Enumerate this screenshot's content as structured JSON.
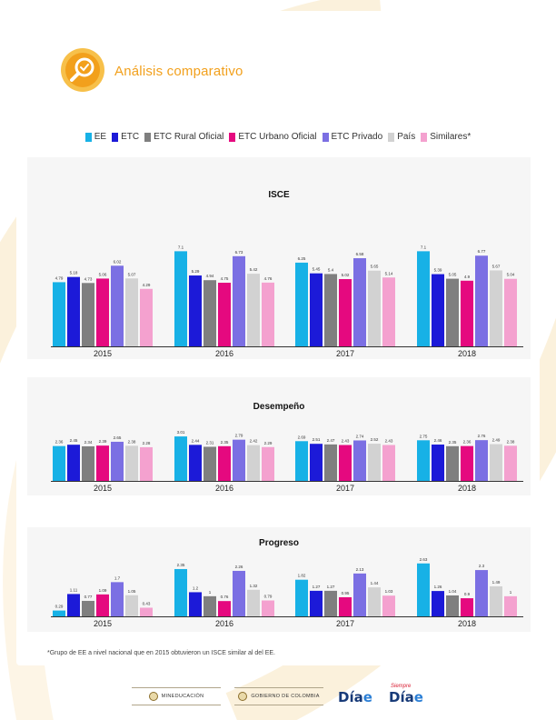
{
  "header": {
    "title": "Análisis comparativo",
    "icon": "magnifier-check-icon",
    "accent_color": "#f2a01c"
  },
  "legend": [
    {
      "label": "EE",
      "color": "#17b1e6"
    },
    {
      "label": "ETC",
      "color": "#1c1ad8"
    },
    {
      "label": "ETC Rural Oficial",
      "color": "#7f7f7f"
    },
    {
      "label": "ETC Urbano Oficial",
      "color": "#e5097f"
    },
    {
      "label": "ETC Privado",
      "color": "#7b6fe3"
    },
    {
      "label": "País",
      "color": "#d2d2d2"
    },
    {
      "label": "Similares*",
      "color": "#f4a1cf"
    }
  ],
  "chart_data": [
    {
      "type": "bar",
      "title": "ISCE",
      "categories": [
        "2015",
        "2016",
        "2017",
        "2018"
      ],
      "series": [
        {
          "name": "EE",
          "values": [
            4.79,
            7.1,
            6.25,
            7.1
          ]
        },
        {
          "name": "ETC",
          "values": [
            5.18,
            5.29,
            5.45,
            5.39
          ]
        },
        {
          "name": "ETC Rural Oficial",
          "values": [
            4.73,
            4.94,
            5.4,
            5.05
          ]
        },
        {
          "name": "ETC Urbano Oficial",
          "values": [
            5.06,
            4.75,
            5.02,
            4.9
          ]
        },
        {
          "name": "ETC Privado",
          "values": [
            6.02,
            6.73,
            6.58,
            6.77
          ]
        },
        {
          "name": "País",
          "values": [
            5.07,
            5.42,
            5.65,
            5.67
          ]
        },
        {
          "name": "Similares*",
          "values": [
            4.29,
            4.76,
            5.14,
            5.04
          ]
        }
      ],
      "ylim": [
        0,
        7.6
      ],
      "grid": false
    },
    {
      "type": "bar",
      "title": "Desempeño",
      "categories": [
        "2015",
        "2016",
        "2017",
        "2018"
      ],
      "series": [
        {
          "name": "EE",
          "values": [
            2.36,
            3.01,
            2.69,
            2.75
          ]
        },
        {
          "name": "ETC",
          "values": [
            2.45,
            2.44,
            2.51,
            2.46
          ]
        },
        {
          "name": "ETC Rural Oficial",
          "values": [
            2.34,
            2.31,
            2.47,
            2.35
          ]
        },
        {
          "name": "ETC Urbano Oficial",
          "values": [
            2.39,
            2.35,
            2.43,
            2.36
          ]
        },
        {
          "name": "ETC Privado",
          "values": [
            2.65,
            2.79,
            2.74,
            2.76
          ]
        },
        {
          "name": "País",
          "values": [
            2.38,
            2.42,
            2.52,
            2.49
          ]
        },
        {
          "name": "Similares*",
          "values": [
            2.28,
            2.29,
            2.43,
            2.38
          ]
        }
      ],
      "ylim": [
        0,
        3.2
      ],
      "grid": false
    },
    {
      "type": "bar",
      "title": "Progreso",
      "categories": [
        "2015",
        "2016",
        "2017",
        "2018"
      ],
      "series": [
        {
          "name": "EE",
          "values": [
            0.29,
            2.35,
            1.82,
            2.63
          ]
        },
        {
          "name": "ETC",
          "values": [
            1.11,
            1.2,
            1.27,
            1.26
          ]
        },
        {
          "name": "ETC Rural Oficial",
          "values": [
            0.77,
            1,
            1.27,
            1.04
          ]
        },
        {
          "name": "ETC Urbano Oficial",
          "values": [
            1.09,
            0.76,
            0.95,
            0.9
          ]
        },
        {
          "name": "ETC Privado",
          "values": [
            1.7,
            2.26,
            2.13,
            2.3
          ]
        },
        {
          "name": "País",
          "values": [
            1.05,
            1.32,
            1.44,
            1.49
          ]
        },
        {
          "name": "Similares*",
          "values": [
            0.43,
            0.79,
            1.03,
            1
          ]
        }
      ],
      "ylim": [
        0,
        2.8
      ],
      "grid": false
    }
  ],
  "footnote": "*Grupo de EE a nivel nacional que en 2015 obtuvieron un ISCE similar al del EE.",
  "footer": {
    "logo1": "MINEDUCACIÓN",
    "logo2": "GOBIERNO DE COLOMBIA",
    "dia_text": "Día",
    "dia_e": "e",
    "siempre": "Siempre"
  }
}
